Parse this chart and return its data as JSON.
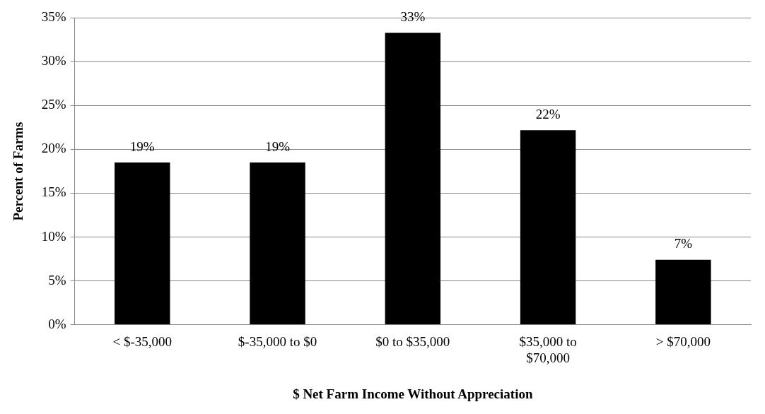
{
  "chart_data": {
    "type": "bar",
    "xlabel": "$ Net Farm Income Without Appreciation",
    "ylabel": "Percent of Farms",
    "categories": [
      "< $-35,000",
      "$-35,000 to $0",
      "$0 to $35,000",
      "$35,000 to $70,000",
      "> $70,000"
    ],
    "values": [
      18.5,
      18.5,
      33.3,
      22.2,
      7.4
    ],
    "value_labels": [
      "19%",
      "19%",
      "33%",
      "22%",
      "7%"
    ],
    "color": "#000000",
    "ylim": [
      0,
      35
    ],
    "yticks": [
      {
        "value": 0,
        "label": "0%"
      },
      {
        "value": 5,
        "label": "5%"
      },
      {
        "value": 10,
        "label": "10%"
      },
      {
        "value": 15,
        "label": "15%"
      },
      {
        "value": 20,
        "label": "20%"
      },
      {
        "value": 25,
        "label": "25%"
      },
      {
        "value": 30,
        "label": "30%"
      },
      {
        "value": 35,
        "label": "35%"
      }
    ],
    "grid": "y",
    "legend": false
  }
}
